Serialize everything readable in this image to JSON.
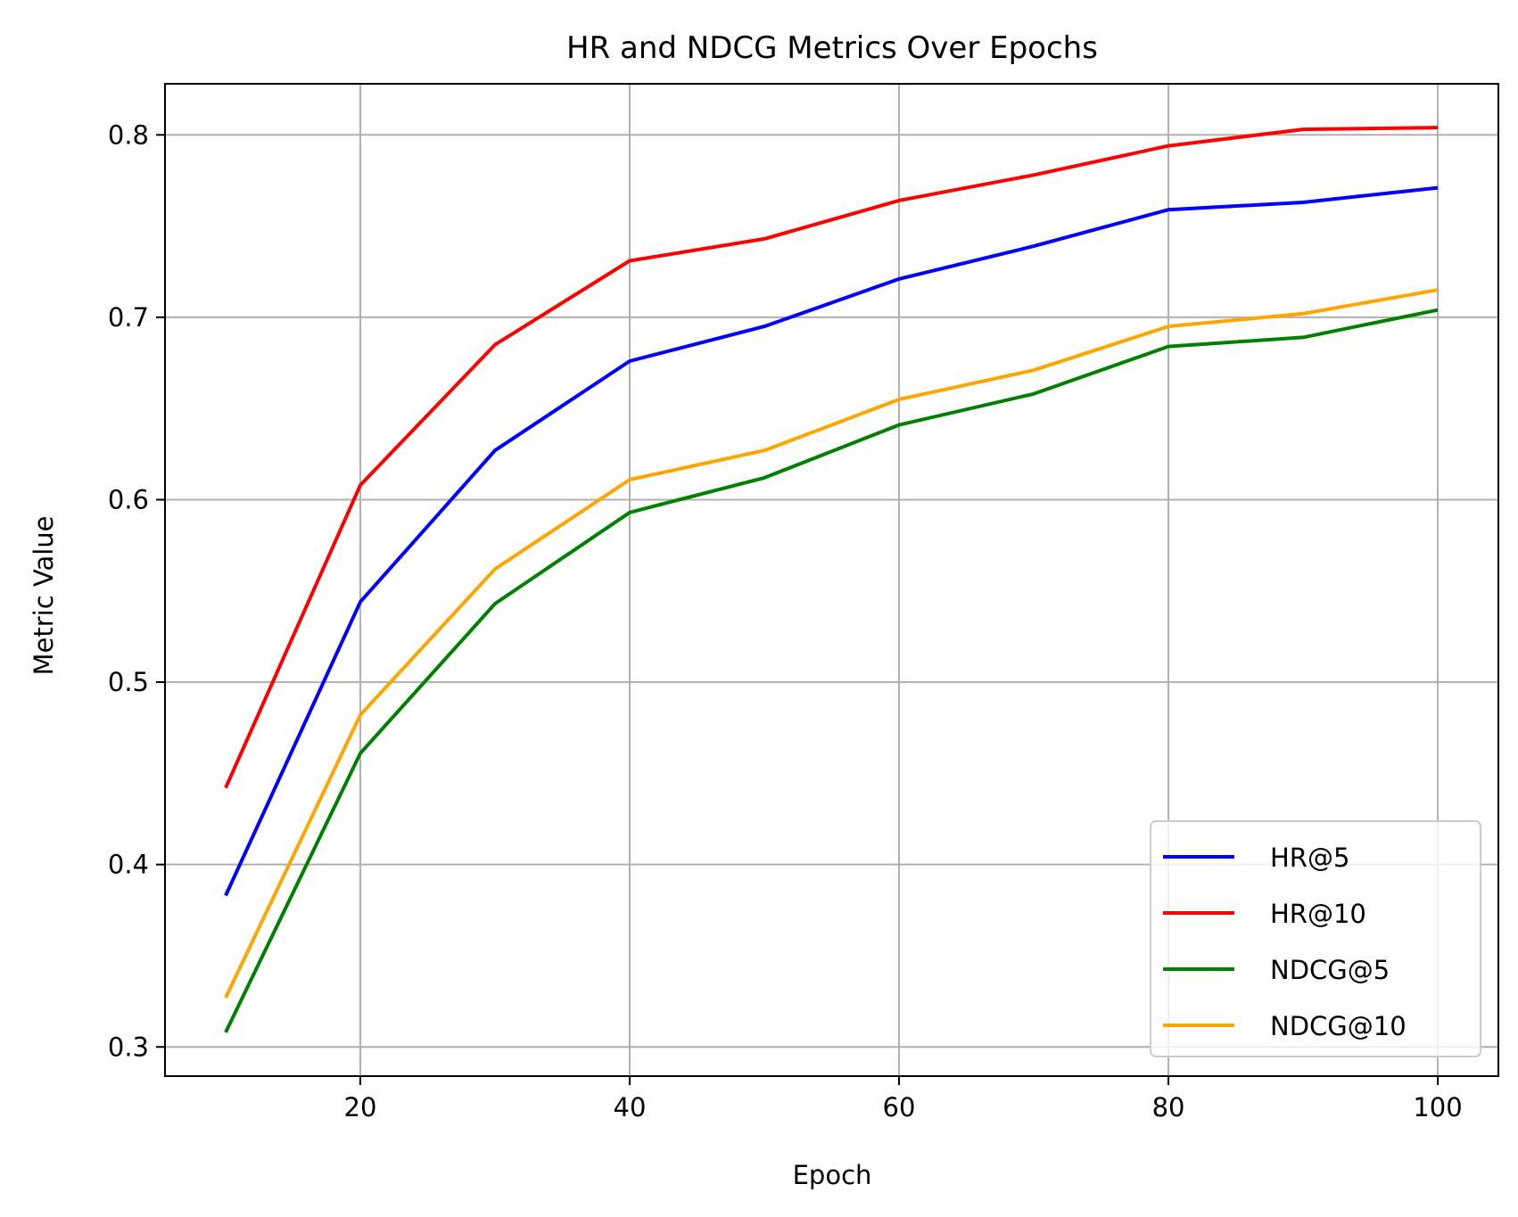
{
  "chart_data": {
    "type": "line",
    "title": "HR and NDCG Metrics Over Epochs",
    "xlabel": "Epoch",
    "ylabel": "Metric Value",
    "x": [
      10,
      20,
      30,
      40,
      50,
      60,
      70,
      80,
      90,
      100
    ],
    "xlim": [
      5.5,
      104.5
    ],
    "ylim": [
      0.284,
      0.828
    ],
    "xticks": [
      20,
      40,
      60,
      80,
      100
    ],
    "xtick_labels": [
      "20",
      "40",
      "60",
      "80",
      "100"
    ],
    "yticks": [
      0.3,
      0.4,
      0.5,
      0.6,
      0.7,
      0.8
    ],
    "ytick_labels": [
      "0.3",
      "0.4",
      "0.5",
      "0.6",
      "0.7",
      "0.8"
    ],
    "grid": true,
    "legend_position": "lower-right",
    "series": [
      {
        "name": "HR@5",
        "color": "#0000ff",
        "values": [
          0.383,
          0.544,
          0.627,
          0.676,
          0.695,
          0.721,
          0.739,
          0.759,
          0.763,
          0.771
        ]
      },
      {
        "name": "HR@10",
        "color": "#ff0000",
        "values": [
          0.442,
          0.608,
          0.685,
          0.731,
          0.743,
          0.764,
          0.778,
          0.794,
          0.803,
          0.804
        ]
      },
      {
        "name": "NDCG@5",
        "color": "#008000",
        "values": [
          0.308,
          0.461,
          0.543,
          0.593,
          0.612,
          0.641,
          0.658,
          0.684,
          0.689,
          0.704
        ]
      },
      {
        "name": "NDCG@10",
        "color": "#ffa500",
        "values": [
          0.327,
          0.482,
          0.562,
          0.611,
          0.627,
          0.655,
          0.671,
          0.695,
          0.702,
          0.715
        ]
      }
    ]
  }
}
